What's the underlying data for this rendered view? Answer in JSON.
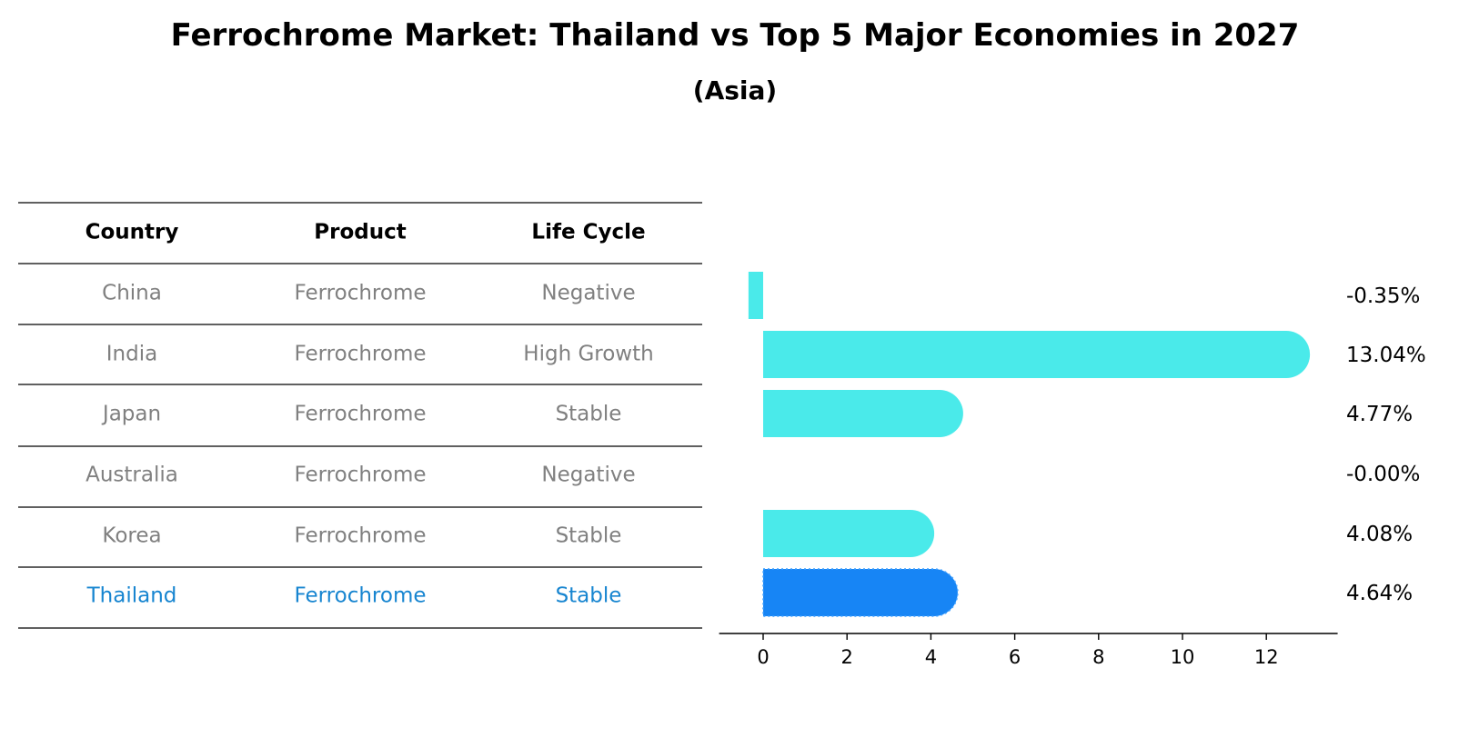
{
  "chart_data": {
    "type": "bar",
    "orientation": "horizontal",
    "title": "Ferrochrome Market: Thailand vs Top 5 Major Economies in 2027",
    "subtitle": "(Asia)",
    "table": {
      "headers": [
        "Country",
        "Product",
        "Life Cycle"
      ],
      "rows": [
        [
          "China",
          "Ferrochrome",
          "Negative"
        ],
        [
          "India",
          "Ferrochrome",
          "High Growth"
        ],
        [
          "Japan",
          "Ferrochrome",
          "Stable"
        ],
        [
          "Australia",
          "Ferrochrome",
          "Negative"
        ],
        [
          "Korea",
          "Ferrochrome",
          "Stable"
        ],
        [
          "Thailand",
          "Ferrochrome",
          "Stable"
        ]
      ]
    },
    "categories": [
      "China",
      "India",
      "Japan",
      "Australia",
      "Korea",
      "Thailand"
    ],
    "values": [
      -0.35,
      13.04,
      4.77,
      -0.0,
      4.08,
      4.64
    ],
    "value_labels": [
      "-0.35%",
      "13.04%",
      "4.77%",
      "-0.00%",
      "4.08%",
      "4.64%"
    ],
    "highlight": "Thailand",
    "xlim": [
      -1.05,
      13.7
    ],
    "xticks": [
      0,
      2,
      4,
      6,
      8,
      10,
      12
    ],
    "xlabel": "",
    "ylabel": "",
    "grid": false,
    "legend": "none"
  },
  "colors": {
    "bar": "#4aeaea",
    "highlight_bar": "#1785f5",
    "highlight_text": "#1785d0",
    "muted_text": "#808080",
    "header_text": "#000000"
  }
}
